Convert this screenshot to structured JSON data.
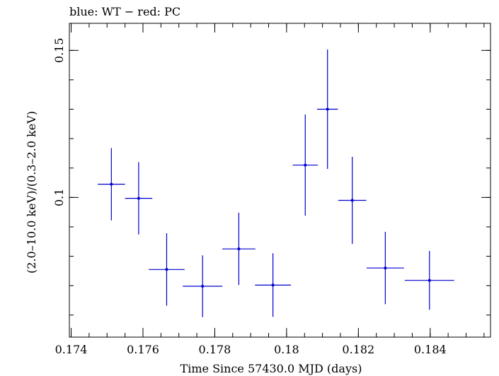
{
  "chart_data": {
    "type": "scatter",
    "title": "blue: WT − red: PC",
    "xlabel": "Time Since 57430.0 MJD (days)",
    "ylabel": "(2.0–10.0 keV)/(0.3–2.0 keV)",
    "xlim": [
      0.17395,
      0.18568
    ],
    "ylim": [
      0.0525,
      0.1592
    ],
    "x_ticks": [
      {
        "value": 0.174,
        "label": "0.174"
      },
      {
        "value": 0.176,
        "label": "0.176"
      },
      {
        "value": 0.178,
        "label": "0.178"
      },
      {
        "value": 0.18,
        "label": "0.18"
      },
      {
        "value": 0.182,
        "label": "0.182"
      },
      {
        "value": 0.184,
        "label": "0.184"
      }
    ],
    "x_minor_step": 0.0005,
    "y_ticks": [
      {
        "value": 0.1,
        "label": "0.1"
      },
      {
        "value": 0.15,
        "label": "0.15"
      }
    ],
    "y_minor_step": 0.01,
    "grid": false,
    "series": [
      {
        "name": "WT",
        "color": "#0000cc",
        "points": [
          {
            "x": 0.17512,
            "xerr": 0.00038,
            "y": 0.1045,
            "yerr_low": 0.0123,
            "yerr_high": 0.0123
          },
          {
            "x": 0.17588,
            "xerr": 0.00038,
            "y": 0.0997,
            "yerr_low": 0.0123,
            "yerr_high": 0.0123
          },
          {
            "x": 0.17666,
            "xerr": 0.0005,
            "y": 0.0755,
            "yerr_low": 0.0123,
            "yerr_high": 0.0123
          },
          {
            "x": 0.17766,
            "xerr": 0.00055,
            "y": 0.0698,
            "yerr_low": 0.0105,
            "yerr_high": 0.0105
          },
          {
            "x": 0.17867,
            "xerr": 0.00046,
            "y": 0.0825,
            "yerr_low": 0.0123,
            "yerr_high": 0.0123
          },
          {
            "x": 0.17962,
            "xerr": 0.0005,
            "y": 0.0702,
            "yerr_low": 0.0108,
            "yerr_high": 0.0108
          },
          {
            "x": 0.18052,
            "xerr": 0.00035,
            "y": 0.111,
            "yerr_low": 0.0172,
            "yerr_high": 0.0172
          },
          {
            "x": 0.18114,
            "xerr": 0.00029,
            "y": 0.13,
            "yerr_low": 0.0203,
            "yerr_high": 0.0203
          },
          {
            "x": 0.18183,
            "xerr": 0.00039,
            "y": 0.099,
            "yerr_low": 0.0148,
            "yerr_high": 0.0148
          },
          {
            "x": 0.18275,
            "xerr": 0.00052,
            "y": 0.076,
            "yerr_low": 0.0123,
            "yerr_high": 0.0123
          },
          {
            "x": 0.18398,
            "xerr": 0.00069,
            "y": 0.0718,
            "yerr_low": 0.01,
            "yerr_high": 0.01
          }
        ]
      }
    ]
  }
}
